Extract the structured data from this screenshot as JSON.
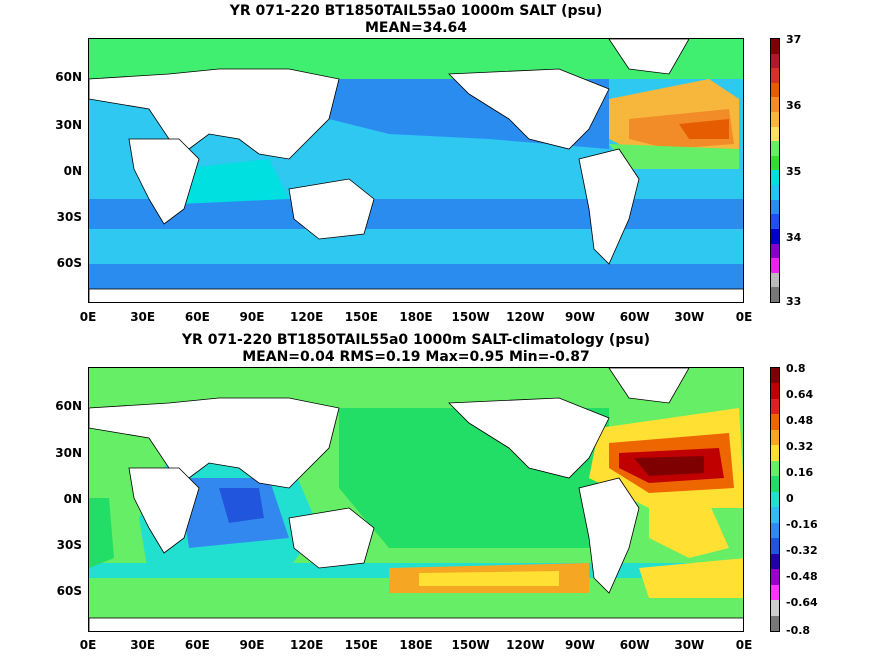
{
  "top": {
    "title_line1": "YR 071-220 BT1850TAIL55a0 1000m SALT (psu)",
    "title_line2": "MEAN=34.64",
    "colorbar_labels": [
      "37",
      "36",
      "35",
      "34",
      "33"
    ]
  },
  "bottom": {
    "title_line1": "YR 071-220 BT1850TAIL55a0 1000m SALT-climatology (psu)",
    "title_line2": "MEAN=0.04   RMS=0.19   Max=0.95   Min=-0.87",
    "colorbar_labels": [
      "0.8",
      "0.64",
      "0.48",
      "0.32",
      "0.16",
      "0",
      "-0.16",
      "-0.32",
      "-0.48",
      "-0.64",
      "-0.8"
    ]
  },
  "lat_labels": [
    "60N",
    "30N",
    "0N",
    "30S",
    "60S"
  ],
  "lon_labels": [
    "0E",
    "30E",
    "60E",
    "90E",
    "120E",
    "150E",
    "180E",
    "150W",
    "120W",
    "90W",
    "60W",
    "30W",
    "0E"
  ],
  "colors": {
    "top_scale": [
      "#7f0000",
      "#b2182b",
      "#d73027",
      "#e65c00",
      "#f28c28",
      "#f6b73c",
      "#ffe066",
      "#66ee66",
      "#33dd33",
      "#00e0e0",
      "#22c4f0",
      "#2b8cf0",
      "#1e50f0",
      "#0000cc",
      "#8800cc",
      "#ee22ee",
      "#bbbbbb",
      "#777777"
    ],
    "bottom_scale": [
      "#7f0000",
      "#c00000",
      "#e02020",
      "#ee6600",
      "#f5a623",
      "#ffe033",
      "#66ee66",
      "#22dd66",
      "#22e0d0",
      "#33bbf0",
      "#3388f0",
      "#2255dd",
      "#2200aa",
      "#9900cc",
      "#ff33ff",
      "#cccccc",
      "#777777"
    ]
  }
}
